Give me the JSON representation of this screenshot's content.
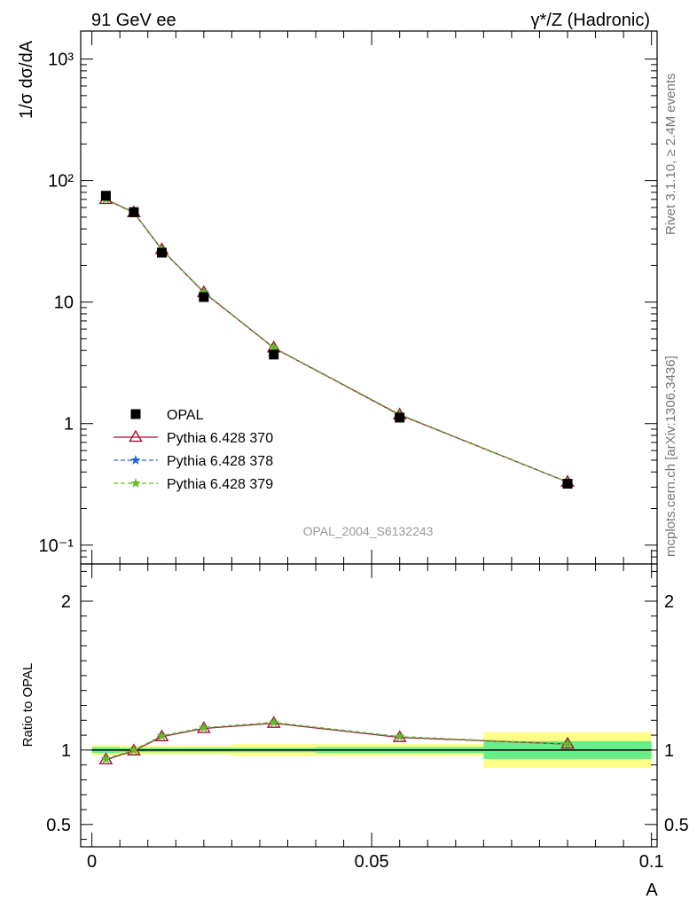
{
  "header": {
    "left": "91 GeV ee",
    "right": "γ*/Z (Hadronic)"
  },
  "side_labels": {
    "top": "Rivet 3.1.10, ≥ 2.4M events",
    "bottom": "mcplots.cern.ch [arXiv:1306.3436]"
  },
  "watermark": "OPAL_2004_S6132243",
  "chart_data": [
    {
      "type": "line",
      "panel": "main",
      "ylabel": "1/σ dσ/dA",
      "xlabel": "",
      "yscale": "log",
      "ylim": [
        0.07,
        1700
      ],
      "xlim": [
        -0.002,
        0.101
      ],
      "yticks_major": [
        0.1,
        1,
        10,
        100,
        1000
      ],
      "ytick_labels": [
        "10⁻¹",
        "1",
        "10",
        "10²",
        "10³"
      ],
      "x": [
        0.0025,
        0.0075,
        0.0125,
        0.02,
        0.0325,
        0.055,
        0.085
      ],
      "series": [
        {
          "name": "OPAL",
          "marker": "square",
          "color": "#000000",
          "values": [
            75,
            55,
            25.5,
            11,
            3.7,
            1.12,
            0.32
          ]
        },
        {
          "name": "Pythia 6.428 370",
          "marker": "open-triangle",
          "line": "solid",
          "color": "#a01030",
          "values": [
            70,
            54.5,
            27,
            12,
            4.2,
            1.18,
            0.33
          ]
        },
        {
          "name": "Pythia 6.428 378",
          "marker": "star",
          "line": "dashed",
          "color": "#2266dd",
          "values": [
            70.5,
            54.8,
            27.1,
            12.1,
            4.22,
            1.19,
            0.33
          ]
        },
        {
          "name": "Pythia 6.428 379",
          "marker": "star",
          "line": "dashed",
          "color": "#66bb22",
          "values": [
            70.5,
            54.8,
            27.1,
            12.1,
            4.22,
            1.19,
            0.33
          ]
        }
      ],
      "legend_position": "bottom-left"
    },
    {
      "type": "line",
      "panel": "ratio",
      "ylabel": "Ratio to OPAL",
      "xlabel": "A",
      "ylim": [
        0.35,
        2.25
      ],
      "xlim": [
        -0.002,
        0.101
      ],
      "yticks_labeled": [
        0.5,
        1,
        2
      ],
      "ytick_labels": [
        "0.5",
        "1",
        "2"
      ],
      "xticks_labeled": [
        0,
        0.05,
        0.1
      ],
      "xtick_labels": [
        "0",
        "0.05",
        "0.1"
      ],
      "x": [
        0.0025,
        0.0075,
        0.0125,
        0.02,
        0.0325,
        0.055,
        0.085
      ],
      "bins": [
        [
          0,
          0.005
        ],
        [
          0.005,
          0.01
        ],
        [
          0.01,
          0.015
        ],
        [
          0.015,
          0.025
        ],
        [
          0.025,
          0.04
        ],
        [
          0.04,
          0.07
        ],
        [
          0.07,
          0.1
        ]
      ],
      "band_stat": [
        0.02,
        0.015,
        0.015,
        0.015,
        0.015,
        0.02,
        0.06
      ],
      "band_total": [
        0.035,
        0.03,
        0.03,
        0.03,
        0.04,
        0.04,
        0.12
      ],
      "band_colors": {
        "stat": "#66ee88",
        "total": "#ffff88"
      },
      "series": [
        {
          "name": "Pythia 6.428 370",
          "color": "#a01030",
          "values": [
            0.935,
            0.995,
            1.09,
            1.145,
            1.18,
            1.085,
            1.04
          ]
        },
        {
          "name": "Pythia 6.428 378",
          "color": "#2266dd",
          "values": [
            0.94,
            1.0,
            1.095,
            1.15,
            1.185,
            1.09,
            1.04
          ]
        },
        {
          "name": "Pythia 6.428 379",
          "color": "#66bb22",
          "values": [
            0.94,
            1.0,
            1.095,
            1.15,
            1.185,
            1.09,
            1.04
          ]
        }
      ]
    }
  ]
}
